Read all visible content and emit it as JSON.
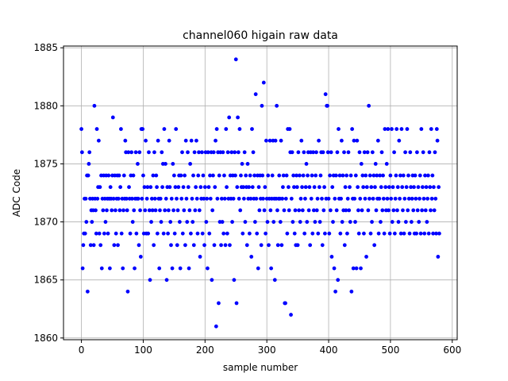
{
  "chart_data": {
    "type": "scatter",
    "title": "channel060 higain raw data",
    "x_label": "sample number",
    "y_label": "ADC Code",
    "color": "#0000ff",
    "grid": true,
    "xlim": [
      -29,
      608
    ],
    "ylim": [
      1859.85,
      1885.15
    ],
    "xticks": [
      0,
      100,
      200,
      300,
      400,
      500,
      600
    ],
    "yticks": [
      1860,
      1865,
      1870,
      1875,
      1880,
      1885
    ],
    "x": [
      0,
      1,
      2,
      3,
      4,
      5,
      6,
      7,
      8,
      9,
      10,
      11,
      12,
      13,
      14,
      15,
      16,
      17,
      18,
      19,
      20,
      21,
      22,
      23,
      24,
      25,
      26,
      27,
      28,
      29,
      30,
      31,
      32,
      33,
      34,
      35,
      36,
      37,
      38,
      39,
      40,
      41,
      42,
      43,
      44,
      45,
      46,
      47,
      48,
      49,
      50,
      51,
      52,
      53,
      54,
      55,
      56,
      57,
      58,
      59,
      60,
      61,
      62,
      63,
      64,
      65,
      66,
      67,
      68,
      69,
      70,
      71,
      72,
      73,
      74,
      75,
      76,
      77,
      78,
      79,
      80,
      81,
      82,
      83,
      84,
      85,
      86,
      87,
      88,
      89,
      90,
      91,
      92,
      93,
      94,
      95,
      96,
      97,
      98,
      99,
      100,
      101,
      102,
      103,
      104,
      105,
      106,
      107,
      108,
      109,
      110,
      111,
      112,
      113,
      114,
      115,
      116,
      117,
      118,
      119,
      120,
      121,
      122,
      123,
      124,
      125,
      126,
      127,
      128,
      129,
      130,
      131,
      132,
      133,
      134,
      135,
      136,
      137,
      138,
      139,
      140,
      141,
      142,
      143,
      144,
      145,
      146,
      147,
      148,
      149,
      150,
      151,
      152,
      153,
      154,
      155,
      156,
      157,
      158,
      159,
      160,
      161,
      162,
      163,
      164,
      165,
      166,
      167,
      168,
      169,
      170,
      171,
      172,
      173,
      174,
      175,
      176,
      177,
      178,
      179,
      180,
      181,
      182,
      183,
      184,
      185,
      186,
      187,
      188,
      189,
      190,
      191,
      192,
      193,
      194,
      195,
      196,
      197,
      198,
      199,
      200,
      201,
      202,
      203,
      204,
      205,
      206,
      207,
      208,
      209,
      210,
      211,
      212,
      213,
      214,
      215,
      216,
      217,
      218,
      219,
      220,
      221,
      222,
      223,
      224,
      225,
      226,
      227,
      228,
      229,
      230,
      231,
      232,
      233,
      234,
      235,
      236,
      237,
      238,
      239,
      240,
      241,
      242,
      243,
      244,
      245,
      246,
      247,
      248,
      249,
      250,
      251,
      252,
      253,
      254,
      255,
      256,
      257,
      258,
      259,
      260,
      261,
      262,
      263,
      264,
      265,
      266,
      267,
      268,
      269,
      270,
      271,
      272,
      273,
      274,
      275,
      276,
      277,
      278,
      279,
      280,
      281,
      282,
      283,
      284,
      285,
      286,
      287,
      288,
      289,
      290,
      291,
      292,
      293,
      294,
      295,
      296,
      297,
      298,
      299,
      300,
      301,
      302,
      303,
      304,
      305,
      306,
      307,
      308,
      309,
      310,
      311,
      312,
      313,
      314,
      315,
      316,
      317,
      318,
      319,
      320,
      321,
      322,
      323,
      324,
      325,
      326,
      327,
      328,
      329,
      330,
      331,
      332,
      333,
      334,
      335,
      336,
      337,
      338,
      339,
      340,
      341,
      342,
      343,
      344,
      345,
      346,
      347,
      348,
      349,
      350,
      351,
      352,
      353,
      354,
      355,
      356,
      357,
      358,
      359,
      360,
      361,
      362,
      363,
      364,
      365,
      366,
      367,
      368,
      369,
      370,
      371,
      372,
      373,
      374,
      375,
      376,
      377,
      378,
      379,
      380,
      381,
      382,
      383,
      384,
      385,
      386,
      387,
      388,
      389,
      390,
      391,
      392,
      393,
      394,
      395,
      396,
      397,
      398,
      399,
      400,
      401,
      402,
      403,
      404,
      405,
      406,
      407,
      408,
      409,
      410,
      411,
      412,
      413,
      414,
      415,
      416,
      417,
      418,
      419,
      420,
      421,
      422,
      423,
      424,
      425,
      426,
      427,
      428,
      429,
      430,
      431,
      432,
      433,
      434,
      435,
      436,
      437,
      438,
      439,
      440,
      441,
      442,
      443,
      444,
      445,
      446,
      447,
      448,
      449,
      450,
      451,
      452,
      453,
      454,
      455,
      456,
      457,
      458,
      459,
      460,
      461,
      462,
      463,
      464,
      465,
      466,
      467,
      468,
      469,
      470,
      471,
      472,
      473,
      474,
      475,
      476,
      477,
      478,
      479,
      480,
      481,
      482,
      483,
      484,
      485,
      486,
      487,
      488,
      489,
      490,
      491,
      492,
      493,
      494,
      495,
      496,
      497,
      498,
      499,
      500,
      501,
      502,
      503,
      504,
      505,
      506,
      507,
      508,
      509,
      510,
      511,
      512,
      513,
      514,
      515,
      516,
      517,
      518,
      519,
      520,
      521,
      522,
      523,
      524,
      525,
      526,
      527,
      528,
      529,
      530,
      531,
      532,
      533,
      534,
      535,
      536,
      537,
      538,
      539,
      540,
      541,
      542,
      543,
      544,
      545,
      546,
      547,
      548,
      549,
      550,
      551,
      552,
      553,
      554,
      555,
      556,
      557,
      558,
      559,
      560,
      561,
      562,
      563,
      564,
      565,
      566,
      567,
      568,
      569,
      570,
      571,
      572,
      573,
      574,
      575,
      576,
      577,
      578,
      579
    ],
    "values": [
      1878,
      1876,
      1866,
      1868,
      1869,
      1872,
      1869,
      1872,
      1870,
      1874,
      1864,
      1874,
      1875,
      1876,
      1872,
      1868,
      1871,
      1870,
      1872,
      1871,
      1868,
      1880,
      1872,
      1871,
      1869,
      1878,
      1872,
      1873,
      1877,
      1869,
      1873,
      1868,
      1874,
      1866,
      1872,
      1871,
      1874,
      1869,
      1872,
      1870,
      1874,
      1871,
      1872,
      1869,
      1874,
      1872,
      1866,
      1873,
      1872,
      1871,
      1874,
      1879,
      1872,
      1868,
      1874,
      1871,
      1869,
      1872,
      1874,
      1868,
      1872,
      1874,
      1871,
      1873,
      1878,
      1869,
      1872,
      1866,
      1871,
      1874,
      1872,
      1877,
      1876,
      1872,
      1871,
      1864,
      1876,
      1873,
      1872,
      1869,
      1874,
      1876,
      1872,
      1870,
      1874,
      1871,
      1866,
      1872,
      1876,
      1869,
      1872,
      1875,
      1872,
      1868,
      1876,
      1871,
      1867,
      1878,
      1872,
      1878,
      1874,
      1869,
      1873,
      1871,
      1877,
      1869,
      1872,
      1873,
      1869,
      1876,
      1871,
      1865,
      1873,
      1870,
      1872,
      1871,
      1874,
      1868,
      1876,
      1872,
      1871,
      1874,
      1873,
      1869,
      1877,
      1872,
      1866,
      1871,
      1872,
      1870,
      1876,
      1873,
      1875,
      1869,
      1878,
      1871,
      1875,
      1872,
      1865,
      1873,
      1869,
      1871,
      1877,
      1873,
      1870,
      1868,
      1872,
      1866,
      1875,
      1871,
      1874,
      1869,
      1873,
      1878,
      1872,
      1868,
      1871,
      1873,
      1874,
      1870,
      1866,
      1874,
      1872,
      1876,
      1869,
      1873,
      1871,
      1874,
      1868,
      1877,
      1872,
      1870,
      1876,
      1873,
      1866,
      1871,
      1875,
      1869,
      1877,
      1872,
      1870,
      1874,
      1868,
      1876,
      1871,
      1873,
      1877,
      1872,
      1869,
      1874,
      1876,
      1871,
      1867,
      1873,
      1872,
      1876,
      1869,
      1874,
      1872,
      1868,
      1873,
      1876,
      1870,
      1872,
      1866,
      1876,
      1873,
      1869,
      1874,
      1872,
      1876,
      1865,
      1871,
      1874,
      1876,
      1868,
      1873,
      1877,
      1861,
      1878,
      1872,
      1876,
      1863,
      1874,
      1870,
      1876,
      1868,
      1872,
      1870,
      1876,
      1869,
      1874,
      1872,
      1868,
      1878,
      1873,
      1869,
      1876,
      1872,
      1879,
      1868,
      1874,
      1872,
      1876,
      1870,
      1874,
      1872,
      1865,
      1876,
      1874,
      1884,
      1863,
      1873,
      1879,
      1876,
      1872,
      1878,
      1871,
      1874,
      1873,
      1875,
      1869,
      1873,
      1872,
      1876,
      1870,
      1874,
      1873,
      1868,
      1875,
      1872,
      1873,
      1869,
      1874,
      1872,
      1867,
      1878,
      1873,
      1876,
      1872,
      1874,
      1870,
      1881,
      1872,
      1869,
      1874,
      1866,
      1873,
      1871,
      1874,
      1872,
      1868,
      1880,
      1874,
      1872,
      1882,
      1871,
      1873,
      1869,
      1877,
      1872,
      1870,
      1874,
      1868,
      1872,
      1877,
      1871,
      1866,
      1872,
      1874,
      1877,
      1870,
      1872,
      1865,
      1877,
      1872,
      1880,
      1871,
      1868,
      1872,
      1874,
      1872,
      1870,
      1877,
      1868,
      1872,
      1873,
      1874,
      1871,
      1863,
      1863,
      1872,
      1874,
      1869,
      1878,
      1873,
      1871,
      1878,
      1876,
      1862,
      1872,
      1876,
      1870,
      1874,
      1873,
      1869,
      1871,
      1868,
      1874,
      1873,
      1868,
      1876,
      1871,
      1874,
      1870,
      1872,
      1877,
      1873,
      1871,
      1874,
      1876,
      1869,
      1872,
      1873,
      1875,
      1870,
      1874,
      1876,
      1871,
      1873,
      1868,
      1876,
      1872,
      1874,
      1869,
      1876,
      1871,
      1873,
      1870,
      1874,
      1876,
      1871,
      1872,
      1869,
      1877,
      1873,
      1870,
      1874,
      1876,
      1872,
      1868,
      1876,
      1871,
      1873,
      1869,
      1881,
      1872,
      1880,
      1880,
      1876,
      1872,
      1869,
      1874,
      1871,
      1876,
      1867,
      1873,
      1870,
      1874,
      1866,
      1872,
      1864,
      1874,
      1871,
      1876,
      1865,
      1878,
      1872,
      1874,
      1869,
      1872,
      1877,
      1870,
      1874,
      1871,
      1876,
      1868,
      1873,
      1871,
      1874,
      1869,
      1872,
      1876,
      1871,
      1873,
      1870,
      1874,
      1864,
      1878,
      1872,
      1866,
      1877,
      1872,
      1870,
      1874,
      1866,
      1877,
      1873,
      1871,
      1869,
      1876,
      1872,
      1866,
      1875,
      1871,
      1874,
      1873,
      1869,
      1876,
      1872,
      1874,
      1867,
      1873,
      1876,
      1871,
      1880,
      1872,
      1874,
      1869,
      1873,
      1870,
      1876,
      1872,
      1874,
      1868,
      1873,
      1875,
      1871,
      1874,
      1872,
      1877,
      1869,
      1872,
      1874,
      1870,
      1873,
      1876,
      1871,
      1874,
      1872,
      1869,
      1878,
      1873,
      1871,
      1875,
      1872,
      1878,
      1871,
      1873,
      1869,
      1874,
      1872,
      1878,
      1870,
      1873,
      1871,
      1876,
      1869,
      1872,
      1874,
      1878,
      1871,
      1873,
      1870,
      1877,
      1872,
      1874,
      1869,
      1878,
      1873,
      1871,
      1874,
      1869,
      1872,
      1876,
      1870,
      1873,
      1878,
      1871,
      1874,
      1872,
      1869,
      1876,
      1873,
      1870,
      1872,
      1874,
      1871,
      1873,
      1869,
      1874,
      1872,
      1869,
      1876,
      1871,
      1873,
      1870,
      1872,
      1874,
      1869,
      1878,
      1871,
      1873,
      1876,
      1872,
      1869,
      1874,
      1871,
      1873,
      1870,
      1872,
      1874,
      1869,
      1876,
      1873,
      1871,
      1878,
      1872,
      1874,
      1869,
      1873,
      1871,
      1876,
      1872,
      1869,
      1878,
      1877,
      1867,
      1873,
      1869
    ]
  }
}
